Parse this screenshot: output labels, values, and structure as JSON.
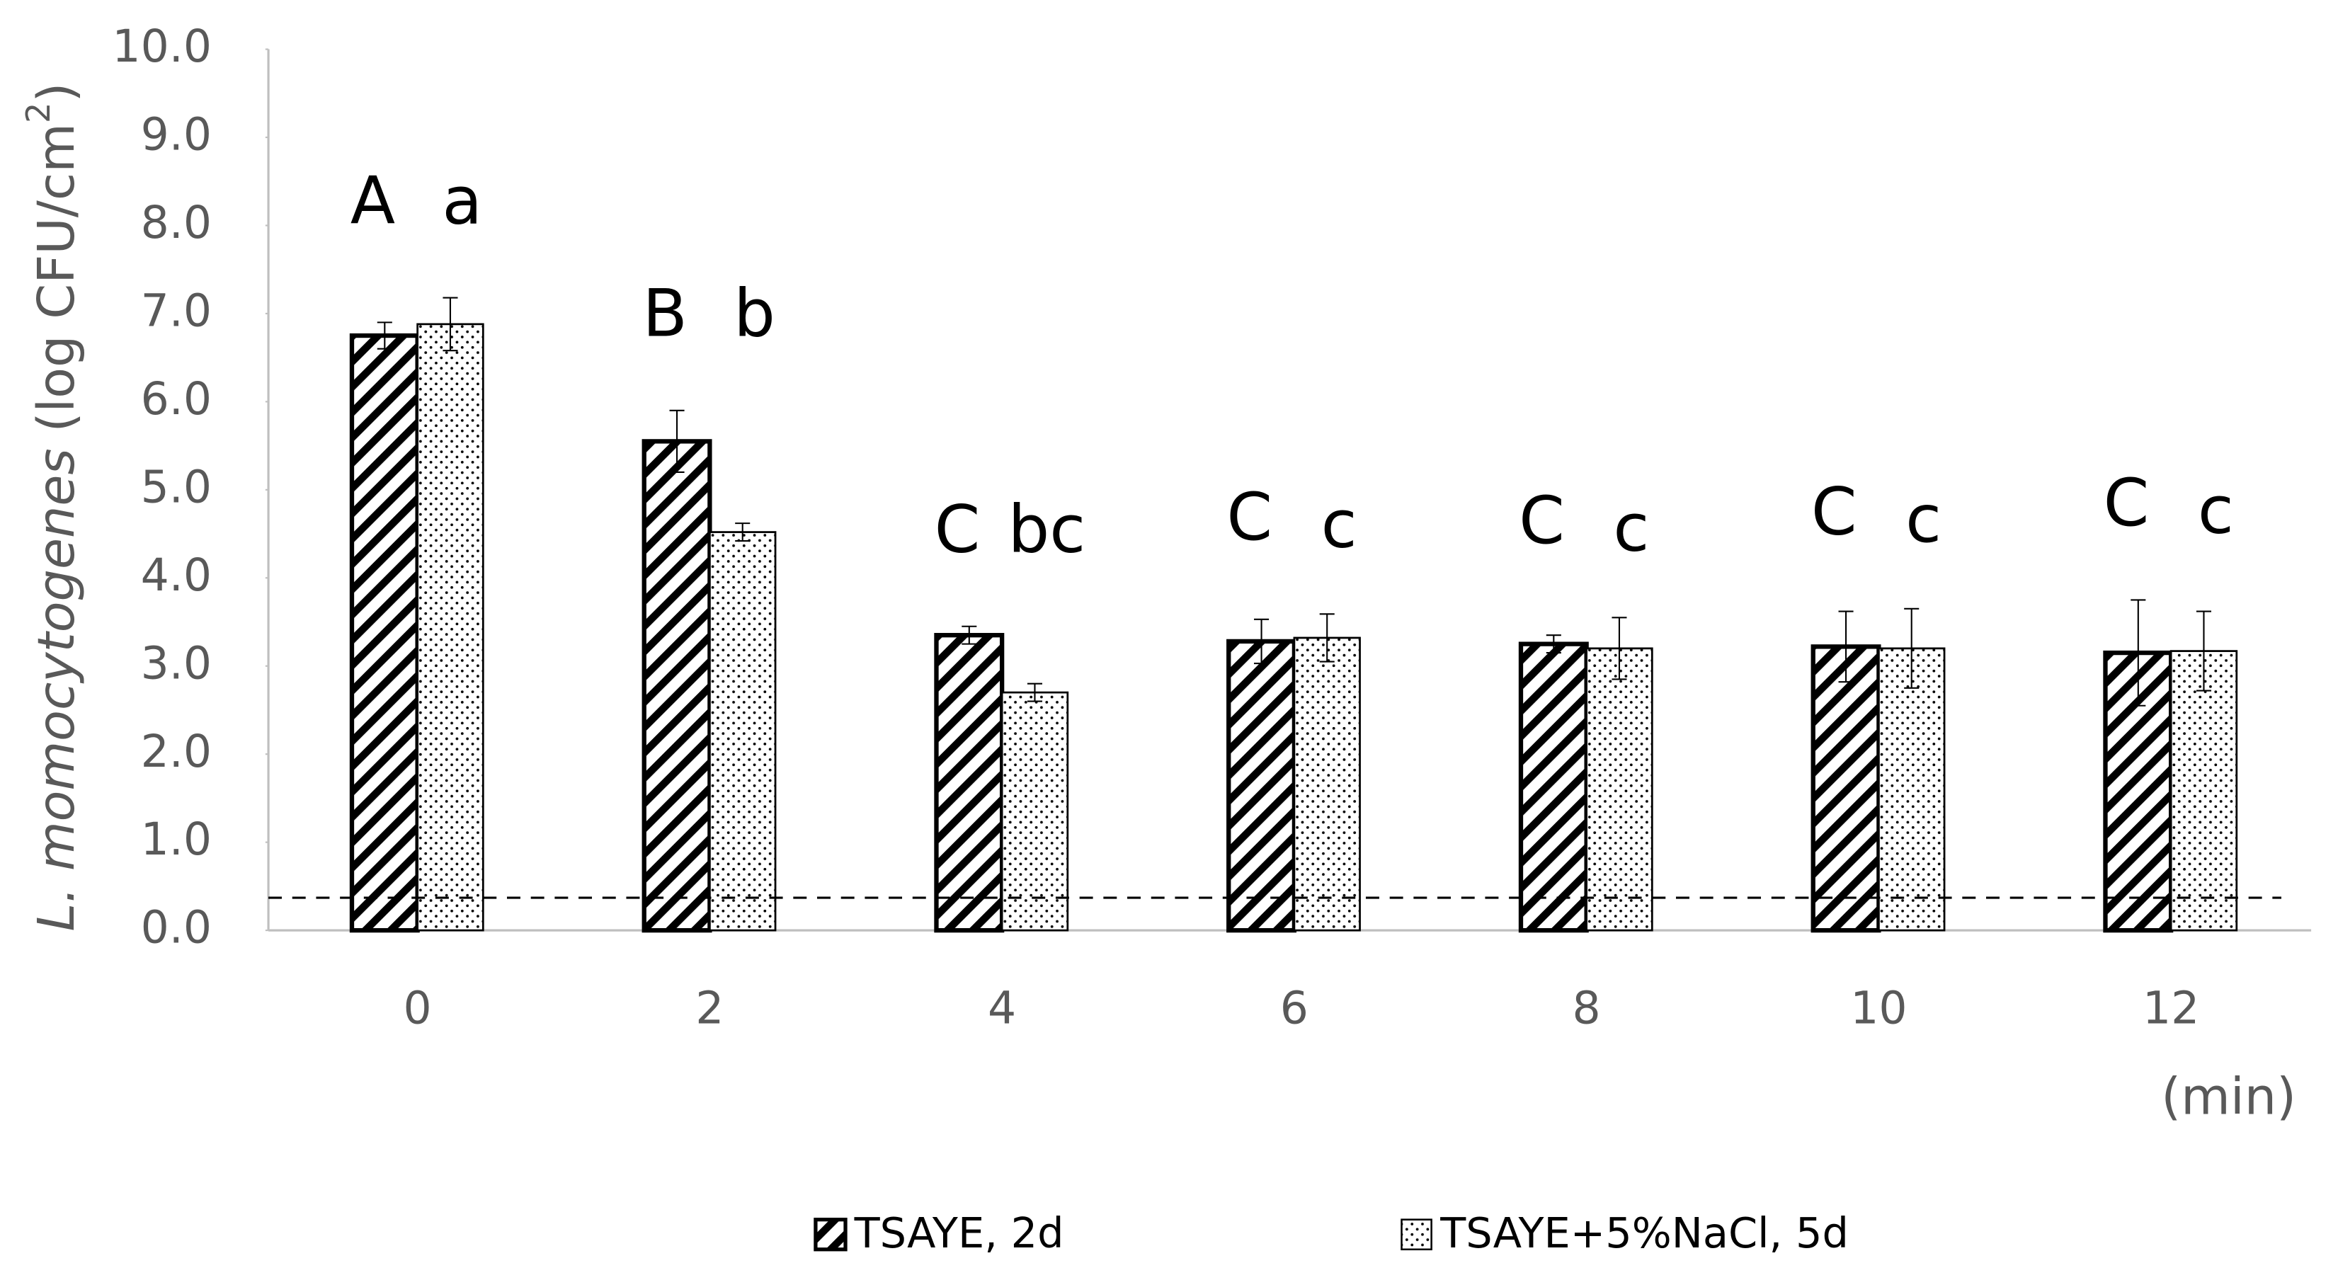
{
  "chart_data": {
    "type": "bar",
    "y_label_italic": "L. momocytogenes",
    "y_label": "(log CFU/cm",
    "y_label_sup": "2",
    "y_label_end": ")",
    "x_label": "(min)",
    "categories": [
      "0",
      "2",
      "4",
      "6",
      "8",
      "10",
      "12"
    ],
    "series": [
      {
        "name": "TSAYE, 2d",
        "color": "#000000",
        "pattern": "hatch",
        "values": [
          6.75,
          5.55,
          3.35,
          3.28,
          3.25,
          3.22,
          3.15
        ],
        "errors": [
          0.15,
          0.35,
          0.1,
          0.25,
          0.1,
          0.4,
          0.6
        ],
        "letters": [
          "A",
          "B",
          "C",
          "C",
          "C",
          "C",
          "C"
        ]
      },
      {
        "name": "TSAYE+5%NaCl, 5d",
        "color": "#000000",
        "pattern": "dots",
        "values": [
          6.88,
          4.52,
          2.7,
          3.32,
          3.2,
          3.2,
          3.17
        ],
        "errors": [
          0.3,
          0.1,
          0.1,
          0.27,
          0.35,
          0.45,
          0.45
        ],
        "letters": [
          "a",
          "b",
          "bc",
          "c",
          "c",
          "c",
          "c"
        ]
      }
    ],
    "detection_limit": 0.37,
    "ylim": [
      0,
      10
    ],
    "yticks": [
      {
        "value": 0,
        "label": "0.0"
      },
      {
        "value": 1,
        "label": "1.0"
      },
      {
        "value": 2,
        "label": "2.0"
      },
      {
        "value": 3,
        "label": "3.0"
      },
      {
        "value": 4,
        "label": "4.0"
      },
      {
        "value": 5,
        "label": "5.0"
      },
      {
        "value": 6,
        "label": "6.0"
      },
      {
        "value": 7,
        "label": "7.0"
      },
      {
        "value": 8,
        "label": "8.0"
      },
      {
        "value": 9,
        "label": "9.0"
      },
      {
        "value": 10,
        "label": "10.0"
      }
    ],
    "legend": "bottom"
  }
}
